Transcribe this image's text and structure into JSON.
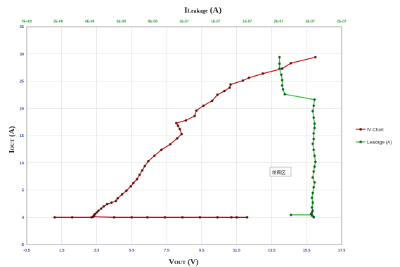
{
  "chart_data": {
    "type": "scatter",
    "title": "",
    "xlabel": "VOUT (V)",
    "ylabel": "IOUT (A)",
    "x2label": "ILeakage (A)",
    "xlim": [
      -0.5,
      17.5
    ],
    "ylim": [
      -5,
      35
    ],
    "x2lim": [
      0,
      2.1e-07
    ],
    "x_ticks": [
      "-0.5",
      "1.5",
      "3.5",
      "5.5",
      "7.5",
      "9.5",
      "11.5",
      "13.5",
      "15.5",
      "17.5"
    ],
    "y_ticks": [
      "-5",
      "0",
      "5",
      "10",
      "15",
      "20",
      "25",
      "30",
      "35"
    ],
    "x2_ticks": [
      "0E+00",
      "2E-08",
      "4E-08",
      "6E-08",
      "8E-08",
      "1E-07",
      "1E-07",
      "1E-07",
      "2E-07",
      "2E-07",
      "2E-07"
    ],
    "grid": true,
    "legend_position": "right",
    "tooltip": "绘图区",
    "series": [
      {
        "name": "IV Chart",
        "color": "#c00000",
        "marker_color": "#5a0c0c",
        "x_axis": "primary",
        "points": [
          [
            1.1,
            0.0
          ],
          [
            2.1,
            0.0
          ],
          [
            3.2,
            0.0
          ],
          [
            3.3,
            0.15
          ],
          [
            3.35,
            0.35
          ],
          [
            3.4,
            0.6
          ],
          [
            3.5,
            0.9
          ],
          [
            3.6,
            1.2
          ],
          [
            3.75,
            1.6
          ],
          [
            3.9,
            2.0
          ],
          [
            4.1,
            2.4
          ],
          [
            4.35,
            2.7
          ],
          [
            4.6,
            3.0
          ],
          [
            4.7,
            3.5
          ],
          [
            4.95,
            4.2
          ],
          [
            5.2,
            4.9
          ],
          [
            5.45,
            5.7
          ],
          [
            5.6,
            6.3
          ],
          [
            5.8,
            7.0
          ],
          [
            5.95,
            7.8
          ],
          [
            6.1,
            8.6
          ],
          [
            6.25,
            9.4
          ],
          [
            6.45,
            10.3
          ],
          [
            6.8,
            11.3
          ],
          [
            7.2,
            12.4
          ],
          [
            7.7,
            13.4
          ],
          [
            8.1,
            14.5
          ],
          [
            8.35,
            15.3
          ],
          [
            8.25,
            16.2
          ],
          [
            8.15,
            16.8
          ],
          [
            8.05,
            17.3
          ],
          [
            8.6,
            17.8
          ],
          [
            9.1,
            18.6
          ],
          [
            9.2,
            19.6
          ],
          [
            9.6,
            20.5
          ],
          [
            10.1,
            21.4
          ],
          [
            10.4,
            22.5
          ],
          [
            10.8,
            23.2
          ],
          [
            11.1,
            23.8
          ],
          [
            11.15,
            24.4
          ],
          [
            11.85,
            25.1
          ],
          [
            12.2,
            25.6
          ],
          [
            13.0,
            26.4
          ],
          [
            14.1,
            27.3
          ],
          [
            14.6,
            28.3
          ],
          [
            16.0,
            29.4
          ]
        ],
        "points_return": [
          [
            3.3,
            0.1
          ],
          [
            4.5,
            0.0
          ],
          [
            5.5,
            0.0
          ],
          [
            6.4,
            0.0
          ],
          [
            7.4,
            0.0
          ],
          [
            8.4,
            0.0
          ],
          [
            9.4,
            0.0
          ],
          [
            10.4,
            0.0
          ],
          [
            11.2,
            0.0
          ],
          [
            11.5,
            0.0
          ],
          [
            12.1,
            0.0
          ]
        ]
      },
      {
        "name": "Leakage (A)",
        "color": "#22bb33",
        "marker_color": "#125a1d",
        "x_axis": "secondary",
        "points": [
          [
            13.95,
            29.4
          ],
          [
            13.95,
            28.2
          ],
          [
            13.95,
            27.3
          ],
          [
            14.05,
            26.2
          ],
          [
            14.1,
            25.2
          ],
          [
            14.1,
            24.2
          ],
          [
            14.15,
            23.5
          ],
          [
            14.25,
            22.6
          ],
          [
            15.95,
            21.6
          ],
          [
            15.9,
            20.5
          ],
          [
            15.85,
            19.5
          ],
          [
            15.9,
            18.3
          ],
          [
            15.95,
            17.2
          ],
          [
            15.95,
            16.4
          ],
          [
            15.9,
            15.4
          ],
          [
            15.9,
            14.4
          ],
          [
            15.85,
            13.5
          ],
          [
            15.9,
            12.4
          ],
          [
            15.95,
            11.3
          ],
          [
            16.0,
            10.2
          ],
          [
            15.95,
            9.3
          ],
          [
            15.9,
            8.4
          ],
          [
            15.85,
            7.3
          ],
          [
            15.95,
            6.4
          ],
          [
            15.9,
            5.5
          ],
          [
            15.85,
            4.5
          ],
          [
            15.8,
            3.6
          ],
          [
            15.85,
            2.7
          ],
          [
            15.8,
            1.8
          ],
          [
            15.85,
            1.2
          ],
          [
            15.8,
            0.9
          ],
          [
            15.75,
            0.6
          ],
          [
            15.8,
            0.3
          ],
          [
            15.9,
            0.1
          ],
          [
            15.9,
            0.0
          ],
          [
            15.8,
            0.45
          ],
          [
            14.6,
            0.45
          ]
        ]
      }
    ]
  }
}
